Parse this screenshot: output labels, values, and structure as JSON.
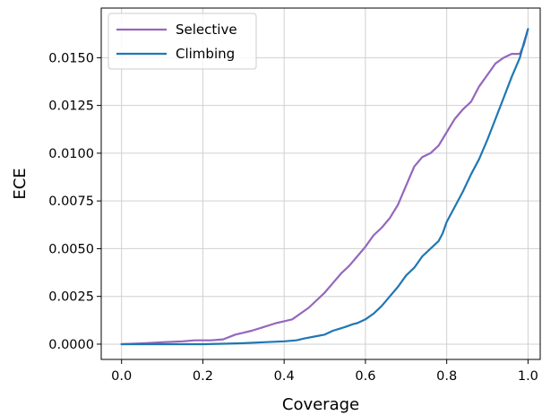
{
  "chart_data": {
    "type": "line",
    "xlabel": "Coverage",
    "ylabel": "ECE",
    "xlim": [
      -0.05,
      1.03
    ],
    "ylim": [
      -0.0008,
      0.0176
    ],
    "xticks": [
      "0.0",
      "0.2",
      "0.4",
      "0.6",
      "0.8",
      "1.0"
    ],
    "yticks": [
      "0.0000",
      "0.0025",
      "0.0050",
      "0.0075",
      "0.0100",
      "0.0125",
      "0.0150"
    ],
    "grid": true,
    "legend_position": "top-left",
    "series": [
      {
        "name": "Selective",
        "color": "#9467bd",
        "x": [
          0.0,
          0.05,
          0.1,
          0.15,
          0.18,
          0.22,
          0.25,
          0.28,
          0.3,
          0.32,
          0.35,
          0.38,
          0.4,
          0.42,
          0.44,
          0.46,
          0.48,
          0.5,
          0.52,
          0.54,
          0.56,
          0.58,
          0.6,
          0.62,
          0.64,
          0.66,
          0.68,
          0.7,
          0.72,
          0.74,
          0.76,
          0.78,
          0.8,
          0.82,
          0.84,
          0.86,
          0.88,
          0.9,
          0.92,
          0.94,
          0.96,
          0.98,
          0.99,
          1.0
        ],
        "y": [
          0.0,
          4e-05,
          0.0001,
          0.00015,
          0.0002,
          0.0002,
          0.00025,
          0.0005,
          0.0006,
          0.0007,
          0.0009,
          0.0011,
          0.0012,
          0.0013,
          0.0016,
          0.0019,
          0.0023,
          0.0027,
          0.0032,
          0.0037,
          0.0041,
          0.0046,
          0.0051,
          0.0057,
          0.0061,
          0.0066,
          0.0073,
          0.0083,
          0.0093,
          0.0098,
          0.01,
          0.0104,
          0.0111,
          0.0118,
          0.0123,
          0.0127,
          0.0135,
          0.0141,
          0.0147,
          0.015,
          0.0152,
          0.0152,
          0.0157,
          0.0165
        ]
      },
      {
        "name": "Climbing",
        "color": "#1f77b4",
        "x": [
          0.0,
          0.1,
          0.2,
          0.25,
          0.3,
          0.35,
          0.4,
          0.43,
          0.45,
          0.48,
          0.5,
          0.52,
          0.55,
          0.57,
          0.58,
          0.6,
          0.62,
          0.64,
          0.66,
          0.68,
          0.7,
          0.72,
          0.74,
          0.76,
          0.78,
          0.79,
          0.8,
          0.82,
          0.84,
          0.86,
          0.88,
          0.9,
          0.92,
          0.94,
          0.96,
          0.98,
          0.99,
          1.0
        ],
        "y": [
          0.0,
          0.0,
          0.0,
          2e-05,
          5e-05,
          0.0001,
          0.00015,
          0.0002,
          0.0003,
          0.00042,
          0.0005,
          0.0007,
          0.0009,
          0.00105,
          0.0011,
          0.0013,
          0.0016,
          0.002,
          0.0025,
          0.003,
          0.0036,
          0.004,
          0.0046,
          0.005,
          0.0054,
          0.0058,
          0.0064,
          0.0072,
          0.008,
          0.0089,
          0.0097,
          0.0107,
          0.0118,
          0.0129,
          0.014,
          0.015,
          0.0158,
          0.0165
        ]
      }
    ]
  }
}
